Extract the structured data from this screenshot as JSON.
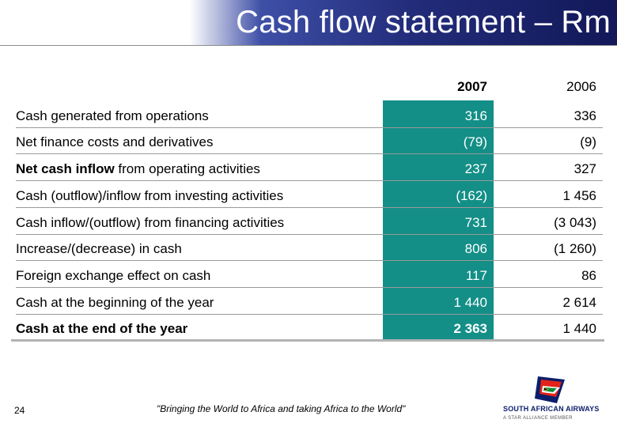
{
  "slide": {
    "title": "Cash flow statement – Rm",
    "page_number": "24",
    "slogan": "\"Bringing the World to Africa and taking Africa to the World\""
  },
  "table": {
    "columns": [
      "2007",
      "2006"
    ],
    "rows": [
      {
        "label": "Cash generated from operations",
        "label_bold": "",
        "label_rest": "",
        "v2007": "316",
        "v2006": "336"
      },
      {
        "label": "Net finance costs and derivatives",
        "label_bold": "",
        "label_rest": "",
        "v2007": "(79)",
        "v2006": "(9)"
      },
      {
        "label": "",
        "label_bold": "Net cash inflow",
        "label_rest": " from operating activities",
        "v2007": "237",
        "v2006": "327"
      },
      {
        "label": "Cash (outflow)/inflow from investing activities",
        "label_bold": "",
        "label_rest": "",
        "v2007": "(162)",
        "v2006": "1 456"
      },
      {
        "label": "Cash inflow/(outflow) from financing activities",
        "label_bold": "",
        "label_rest": "",
        "v2007": "731",
        "v2006": "(3 043)"
      },
      {
        "label": "Increase/(decrease) in cash",
        "label_bold": "",
        "label_rest": "",
        "v2007": "806",
        "v2006": "(1 260)"
      },
      {
        "label": "Foreign exchange effect on cash",
        "label_bold": "",
        "label_rest": "",
        "v2007": "117",
        "v2006": "86"
      },
      {
        "label": "Cash at the beginning of the year",
        "label_bold": "",
        "label_rest": "",
        "v2007": "1 440",
        "v2006": "2 614"
      },
      {
        "label": "Cash at the end of the year",
        "label_bold": "",
        "label_rest": "",
        "v2007": "2 363",
        "v2006": "1 440"
      }
    ]
  },
  "logo": {
    "name": "SOUTH AFRICAN AIRWAYS",
    "tagline": "A STAR ALLIANCE MEMBER",
    "icon": "saa-flag-tail-icon"
  },
  "colors": {
    "title_bar": "#222c7a",
    "highlight_column": "#138f87",
    "logo_text": "#0b1e6b"
  }
}
